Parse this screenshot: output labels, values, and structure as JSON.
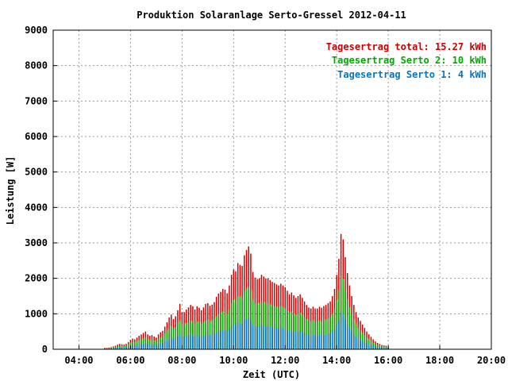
{
  "chart_data": {
    "type": "bar",
    "title": "Produktion Solaranlage Serto-Gressel 2012-04-11",
    "xlabel": "Zeit (UTC)",
    "ylabel": "Leistung [W]",
    "xlim": [
      3.0,
      20.0
    ],
    "ylim": [
      0,
      9000
    ],
    "x_ticks": [
      "04:00",
      "06:00",
      "08:00",
      "10:00",
      "12:00",
      "14:00",
      "16:00",
      "18:00",
      "20:00"
    ],
    "y_ticks": [
      "0",
      "1000",
      "2000",
      "3000",
      "4000",
      "5000",
      "6000",
      "7000",
      "8000",
      "9000"
    ],
    "grid": true,
    "legend_position": "top-right",
    "legend": [
      {
        "label": "Tagesertrag total: 15.27 kWh",
        "color": "#cc0000"
      },
      {
        "label": "Tagesertrag Serto 2: 10 kWh",
        "color": "#00aa00"
      },
      {
        "label": "Tagesertrag Serto 1: 4 kWh",
        "color": "#0077cc"
      }
    ],
    "x_step_hours": 0.08333,
    "x_hours": [
      5.0,
      5.0833,
      5.1667,
      5.25,
      5.3333,
      5.4167,
      5.5,
      5.5833,
      5.6667,
      5.75,
      5.8333,
      5.9167,
      6.0,
      6.0833,
      6.1667,
      6.25,
      6.3333,
      6.4167,
      6.5,
      6.5833,
      6.6667,
      6.75,
      6.8333,
      6.9167,
      7.0,
      7.0833,
      7.1667,
      7.25,
      7.3333,
      7.4167,
      7.5,
      7.5833,
      7.6667,
      7.75,
      7.8333,
      7.9167,
      8.0,
      8.0833,
      8.1667,
      8.25,
      8.3333,
      8.4167,
      8.5,
      8.5833,
      8.6667,
      8.75,
      8.8333,
      8.9167,
      9.0,
      9.0833,
      9.1667,
      9.25,
      9.3333,
      9.4167,
      9.5,
      9.5833,
      9.6667,
      9.75,
      9.8333,
      9.9167,
      10.0,
      10.0833,
      10.1667,
      10.25,
      10.3333,
      10.4167,
      10.5,
      10.5833,
      10.6667,
      10.75,
      10.8333,
      10.9167,
      11.0,
      11.0833,
      11.1667,
      11.25,
      11.3333,
      11.4167,
      11.5,
      11.5833,
      11.6667,
      11.75,
      11.8333,
      11.9167,
      12.0,
      12.0833,
      12.1667,
      12.25,
      12.3333,
      12.4167,
      12.5,
      12.5833,
      12.6667,
      12.75,
      12.8333,
      12.9167,
      13.0,
      13.0833,
      13.1667,
      13.25,
      13.3333,
      13.4167,
      13.5,
      13.5833,
      13.6667,
      13.75,
      13.8333,
      13.9167,
      14.0,
      14.0833,
      14.1667,
      14.25,
      14.3333,
      14.4167,
      14.5,
      14.5833,
      14.6667,
      14.75,
      14.8333,
      14.9167,
      15.0,
      15.0833,
      15.1667,
      15.25,
      15.3333,
      15.4167,
      15.5,
      15.5833,
      15.6667,
      15.75,
      15.8333,
      15.9167,
      16.0,
      16.0833,
      16.1667,
      16.25,
      16.3333,
      16.4167,
      16.5,
      16.5833,
      16.6667,
      16.75,
      16.8333,
      16.9167,
      17.0,
      17.0833,
      17.1667,
      17.25,
      17.3333,
      17.4167,
      17.5,
      17.5833,
      17.6667,
      17.75,
      17.8333,
      17.9167,
      18.0
    ],
    "series": [
      {
        "name": "Tagesertrag total: 15.27 kWh",
        "color": "#cc0000",
        "values": [
          40,
          40,
          50,
          60,
          80,
          100,
          130,
          150,
          140,
          130,
          150,
          200,
          260,
          300,
          280,
          330,
          380,
          420,
          460,
          500,
          420,
          380,
          400,
          360,
          330,
          420,
          480,
          520,
          640,
          760,
          900,
          980,
          850,
          930,
          1100,
          1280,
          1050,
          1050,
          1120,
          1180,
          1250,
          1210,
          1120,
          1210,
          1170,
          1100,
          1180,
          1280,
          1300,
          1230,
          1260,
          1330,
          1480,
          1570,
          1620,
          1700,
          1680,
          1580,
          1800,
          2100,
          2250,
          2200,
          2430,
          2380,
          2350,
          2650,
          2800,
          2900,
          2700,
          2180,
          2020,
          1980,
          2000,
          2100,
          2050,
          2000,
          2000,
          1950,
          1900,
          1870,
          1830,
          1800,
          1850,
          1800,
          1750,
          1650,
          1550,
          1600,
          1520,
          1450,
          1500,
          1550,
          1450,
          1350,
          1250,
          1180,
          1150,
          1200,
          1150,
          1150,
          1200,
          1170,
          1220,
          1250,
          1300,
          1350,
          1500,
          1700,
          2100,
          2550,
          3250,
          3100,
          2600,
          2150,
          1800,
          1500,
          1250,
          1050,
          900,
          800,
          700,
          600,
          500,
          420,
          350,
          280,
          220,
          180,
          150,
          120,
          110,
          100,
          60
        ]
      },
      {
        "name": "Tagesertrag Serto 2: 10 kWh",
        "color": "#00aa00",
        "values": [
          20,
          25,
          30,
          40,
          55,
          70,
          90,
          100,
          95,
          90,
          100,
          140,
          180,
          210,
          200,
          230,
          260,
          290,
          320,
          340,
          290,
          260,
          280,
          250,
          230,
          290,
          330,
          360,
          440,
          520,
          600,
          650,
          580,
          620,
          720,
          820,
          700,
          700,
          740,
          760,
          800,
          780,
          730,
          780,
          760,
          720,
          760,
          820,
          830,
          790,
          810,
          850,
          930,
          990,
          1020,
          1070,
          1050,
          1000,
          1120,
          1300,
          1400,
          1380,
          1500,
          1480,
          1460,
          1640,
          1720,
          1760,
          1650,
          1380,
          1300,
          1280,
          1300,
          1350,
          1330,
          1300,
          1300,
          1270,
          1240,
          1220,
          1200,
          1180,
          1210,
          1180,
          1150,
          1090,
          1030,
          1060,
          1010,
          970,
          1000,
          1030,
          970,
          910,
          850,
          800,
          780,
          810,
          780,
          780,
          810,
          790,
          820,
          840,
          870,
          900,
          1000,
          1130,
          1380,
          1660,
          2080,
          1990,
          1680,
          1400,
          1180,
          990,
          830,
          700,
          600,
          530,
          470,
          400,
          340,
          285,
          240,
          195,
          150,
          125,
          105,
          85,
          78,
          70,
          42
        ]
      },
      {
        "name": "Tagesertrag Serto 1: 4 kWh",
        "color": "#0077cc",
        "values": [
          10,
          12,
          15,
          20,
          28,
          35,
          45,
          50,
          48,
          45,
          50,
          70,
          90,
          105,
          100,
          115,
          130,
          145,
          160,
          170,
          145,
          130,
          140,
          125,
          115,
          145,
          165,
          180,
          220,
          260,
          300,
          330,
          290,
          310,
          360,
          410,
          350,
          350,
          370,
          380,
          400,
          390,
          365,
          390,
          380,
          360,
          380,
          410,
          420,
          395,
          405,
          430,
          470,
          500,
          510,
          540,
          530,
          500,
          560,
          650,
          700,
          690,
          750,
          740,
          730,
          820,
          860,
          880,
          820,
          690,
          650,
          640,
          650,
          680,
          660,
          650,
          650,
          640,
          620,
          610,
          600,
          590,
          600,
          590,
          570,
          540,
          510,
          530,
          505,
          485,
          500,
          515,
          485,
          455,
          425,
          400,
          390,
          405,
          390,
          390,
          405,
          395,
          410,
          420,
          430,
          450,
          500,
          560,
          690,
          830,
          1040,
          995,
          840,
          700,
          590,
          495,
          415,
          350,
          300,
          265,
          235,
          200,
          170,
          142,
          120,
          98,
          75,
          62,
          52,
          42,
          39,
          35,
          21
        ]
      }
    ]
  }
}
